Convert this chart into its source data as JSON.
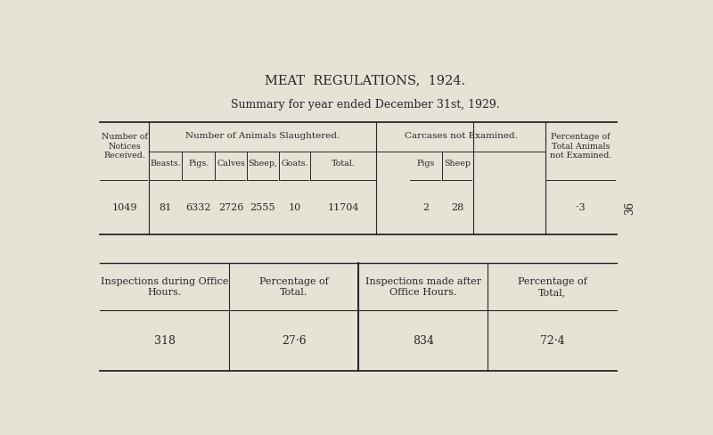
{
  "title": "MEAT  REGULATIONS,  1924.",
  "subtitle": "Summary for year ended December 31st, 1929.",
  "bg_color": "#e6e2d6",
  "text_color": "#2a2525",
  "page_number": "36",
  "bottom_table": {
    "headers": [
      "Inspections during Office\nHours.",
      "Percentage of\nTotal.",
      "Inspections made after\nOffice Hours.",
      "Percentage of\nTotal,"
    ],
    "data": [
      "318",
      "27·6",
      "834",
      "72·4"
    ]
  }
}
